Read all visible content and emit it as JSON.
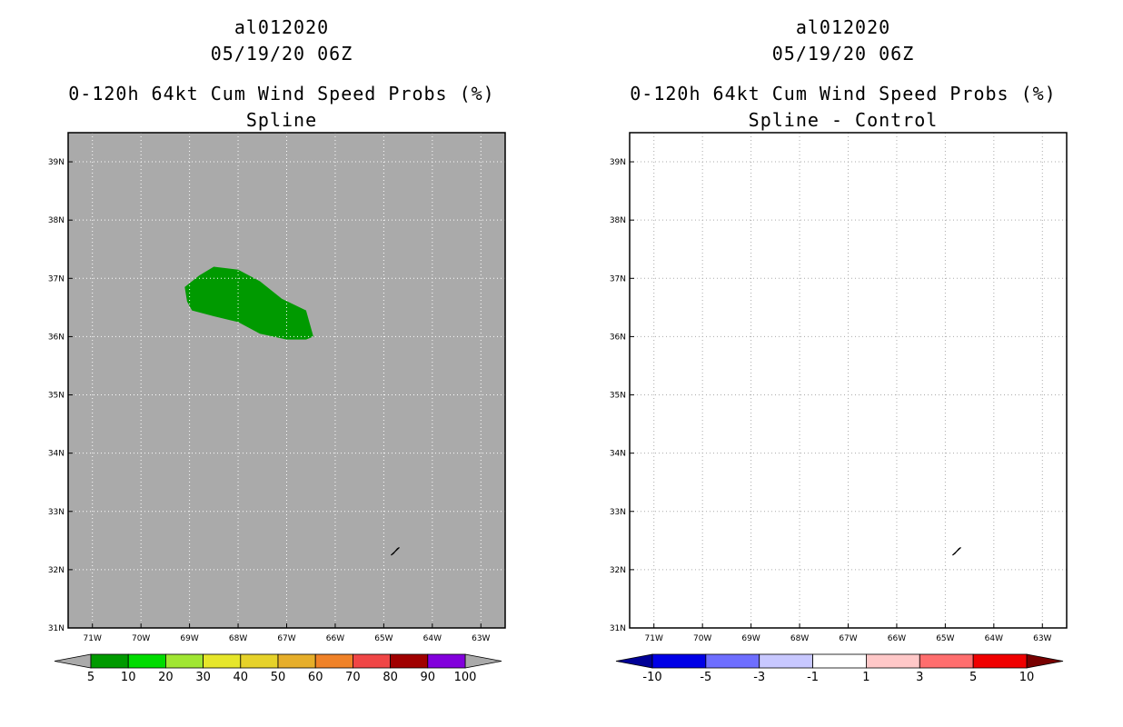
{
  "left_panel": {
    "storm_id": "al012020",
    "datetime": "05/19/20 06Z",
    "product": "0-120h 64kt Cum Wind Speed Probs (%)",
    "subtitle": "Spline",
    "background_color": "#aaaaaa",
    "probability_region": {
      "contour_level": "5-10%",
      "color": "#009a00",
      "outline_lonlat": [
        [
          -69.1,
          36.85
        ],
        [
          -68.8,
          37.05
        ],
        [
          -68.5,
          37.2
        ],
        [
          -68.0,
          37.15
        ],
        [
          -67.55,
          36.95
        ],
        [
          -67.1,
          36.65
        ],
        [
          -66.6,
          36.45
        ],
        [
          -66.45,
          36.0
        ],
        [
          -66.6,
          35.95
        ],
        [
          -67.0,
          35.95
        ],
        [
          -67.55,
          36.05
        ],
        [
          -68.0,
          36.25
        ],
        [
          -68.5,
          36.35
        ],
        [
          -68.95,
          36.45
        ],
        [
          -69.05,
          36.6
        ]
      ]
    },
    "colorbar": {
      "labels": [
        "5",
        "10",
        "20",
        "30",
        "40",
        "50",
        "60",
        "70",
        "80",
        "90",
        "100"
      ],
      "colors": [
        "#009a00",
        "#00dc00",
        "#a0e632",
        "#e6e62a",
        "#e6d22a",
        "#e6ae2a",
        "#f08228",
        "#f04646",
        "#a00000",
        "#8200dc"
      ],
      "extend_color": "#aaaaaa"
    }
  },
  "right_panel": {
    "storm_id": "al012020",
    "datetime": "05/19/20 06Z",
    "product": "0-120h 64kt Cum Wind Speed Probs (%)",
    "subtitle": "Spline - Control",
    "background_color": "#ffffff",
    "colorbar": {
      "labels": [
        "-10",
        "-5",
        "-3",
        "-1",
        "1",
        "3",
        "5",
        "10"
      ],
      "colors": [
        "#0000e6",
        "#6e6eff",
        "#c8c8ff",
        "#ffffff",
        "#ffc8c8",
        "#ff6e6e",
        "#f00000"
      ],
      "extend_low_color": "#000096",
      "extend_high_color": "#780000"
    }
  },
  "map": {
    "lon_min": -71.5,
    "lon_max": -62.5,
    "lat_min": 31,
    "lat_max": 39.5,
    "lon_ticks": [
      {
        "lon": -71,
        "label": "71W"
      },
      {
        "lon": -70,
        "label": "70W"
      },
      {
        "lon": -69,
        "label": "69W"
      },
      {
        "lon": -68,
        "label": "68W"
      },
      {
        "lon": -67,
        "label": "67W"
      },
      {
        "lon": -66,
        "label": "66W"
      },
      {
        "lon": -65,
        "label": "65W"
      },
      {
        "lon": -64,
        "label": "64W"
      },
      {
        "lon": -63,
        "label": "63W"
      }
    ],
    "lat_ticks": [
      {
        "lat": 31,
        "label": "31N"
      },
      {
        "lat": 32,
        "label": "32N"
      },
      {
        "lat": 33,
        "label": "33N"
      },
      {
        "lat": 34,
        "label": "34N"
      },
      {
        "lat": 35,
        "label": "35N"
      },
      {
        "lat": 36,
        "label": "36N"
      },
      {
        "lat": 37,
        "label": "37N"
      },
      {
        "lat": 38,
        "label": "38N"
      },
      {
        "lat": 39,
        "label": "39N"
      }
    ],
    "land_feature": {
      "name": "Bermuda",
      "outline_lonlat": [
        [
          -64.85,
          32.25
        ],
        [
          -64.78,
          32.3
        ],
        [
          -64.68,
          32.38
        ],
        [
          -64.72,
          32.36
        ],
        [
          -64.8,
          32.28
        ],
        [
          -64.85,
          32.25
        ]
      ]
    }
  }
}
